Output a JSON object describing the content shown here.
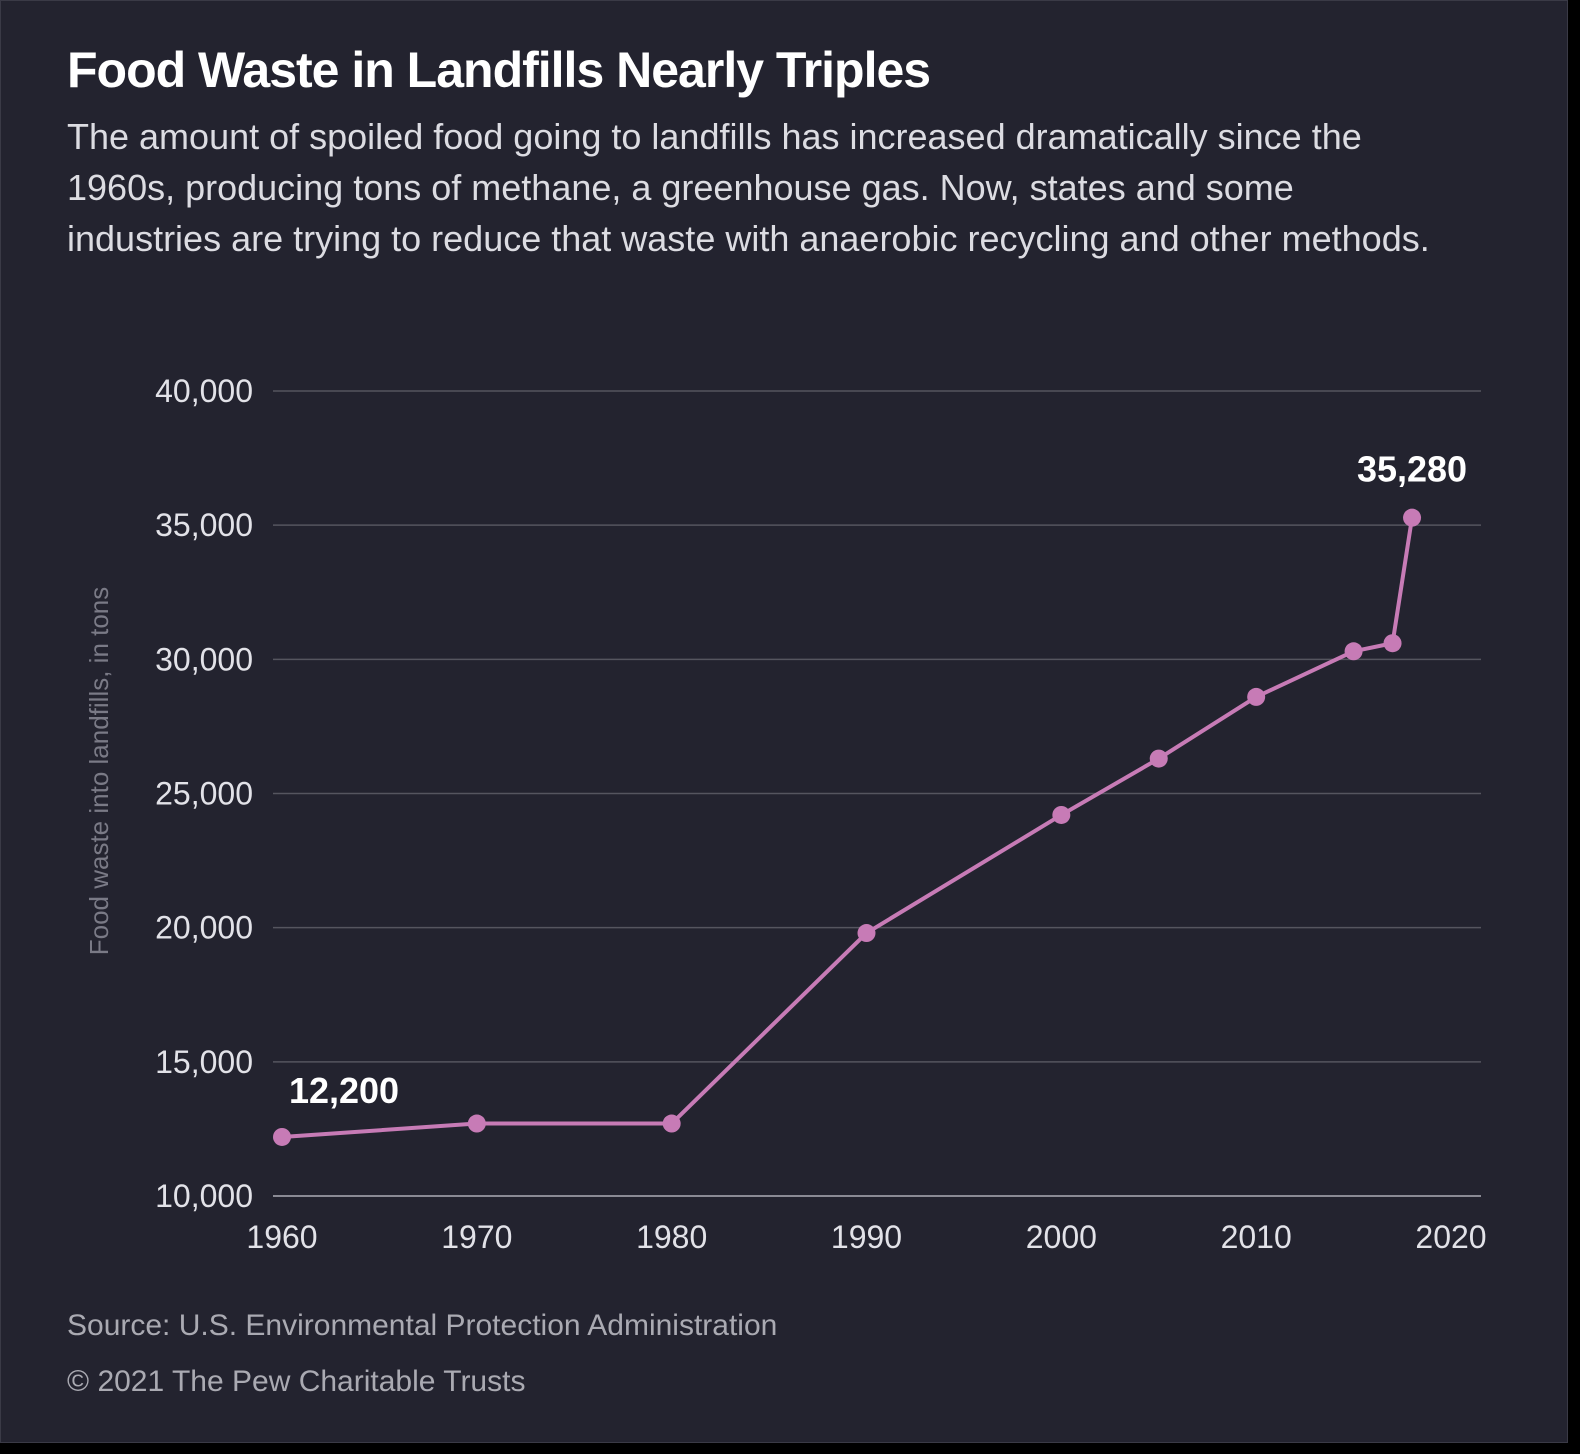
{
  "header": {
    "title": "Food Waste in Landfills Nearly Triples",
    "subtitle": "The amount of spoiled food going to landfills has increased dramatically since the 1960s, producing tons of methane, a greenhouse gas. Now, states and some industries are trying to reduce that waste with anaerobic recycling and other methods."
  },
  "footer": {
    "source": "Source: U.S. Environmental Protection Administration",
    "copyright": "© 2021 The Pew Charitable Trusts"
  },
  "colors": {
    "background": "#23232f",
    "line": "#c77bb6",
    "grid": "#55555f",
    "tick_text": "#e2e2e8",
    "axis_label": "#7a7a86",
    "annotation": "#ffffff"
  },
  "chart_data": {
    "type": "line",
    "title": "Food Waste in Landfills Nearly Triples",
    "xlabel": "",
    "ylabel": "Food waste into landfills, in tons",
    "xlim": [
      1960,
      2020
    ],
    "ylim": [
      10000,
      40000
    ],
    "x_ticks": [
      1960,
      1970,
      1980,
      1990,
      2000,
      2010,
      2020
    ],
    "x_tick_labels": [
      "1960",
      "1970",
      "1980",
      "1990",
      "2000",
      "2010",
      "2020"
    ],
    "y_ticks": [
      10000,
      15000,
      20000,
      25000,
      30000,
      35000,
      40000
    ],
    "y_tick_labels": [
      "10,000",
      "15,000",
      "20,000",
      "25,000",
      "30,000",
      "35,000",
      "40,000"
    ],
    "grid": true,
    "legend": "none",
    "series": [
      {
        "x": [
          1960,
          1970,
          1980,
          1990,
          2000,
          2005,
          2010,
          2015,
          2017,
          2018
        ],
        "values": [
          12200,
          12700,
          12700,
          19800,
          24200,
          26300,
          28600,
          30300,
          30600,
          35280
        ]
      }
    ],
    "annotations": [
      {
        "x": 1960,
        "y": 12200,
        "text": "12,200"
      },
      {
        "x": 2018,
        "y": 35280,
        "text": "35,280"
      }
    ]
  }
}
